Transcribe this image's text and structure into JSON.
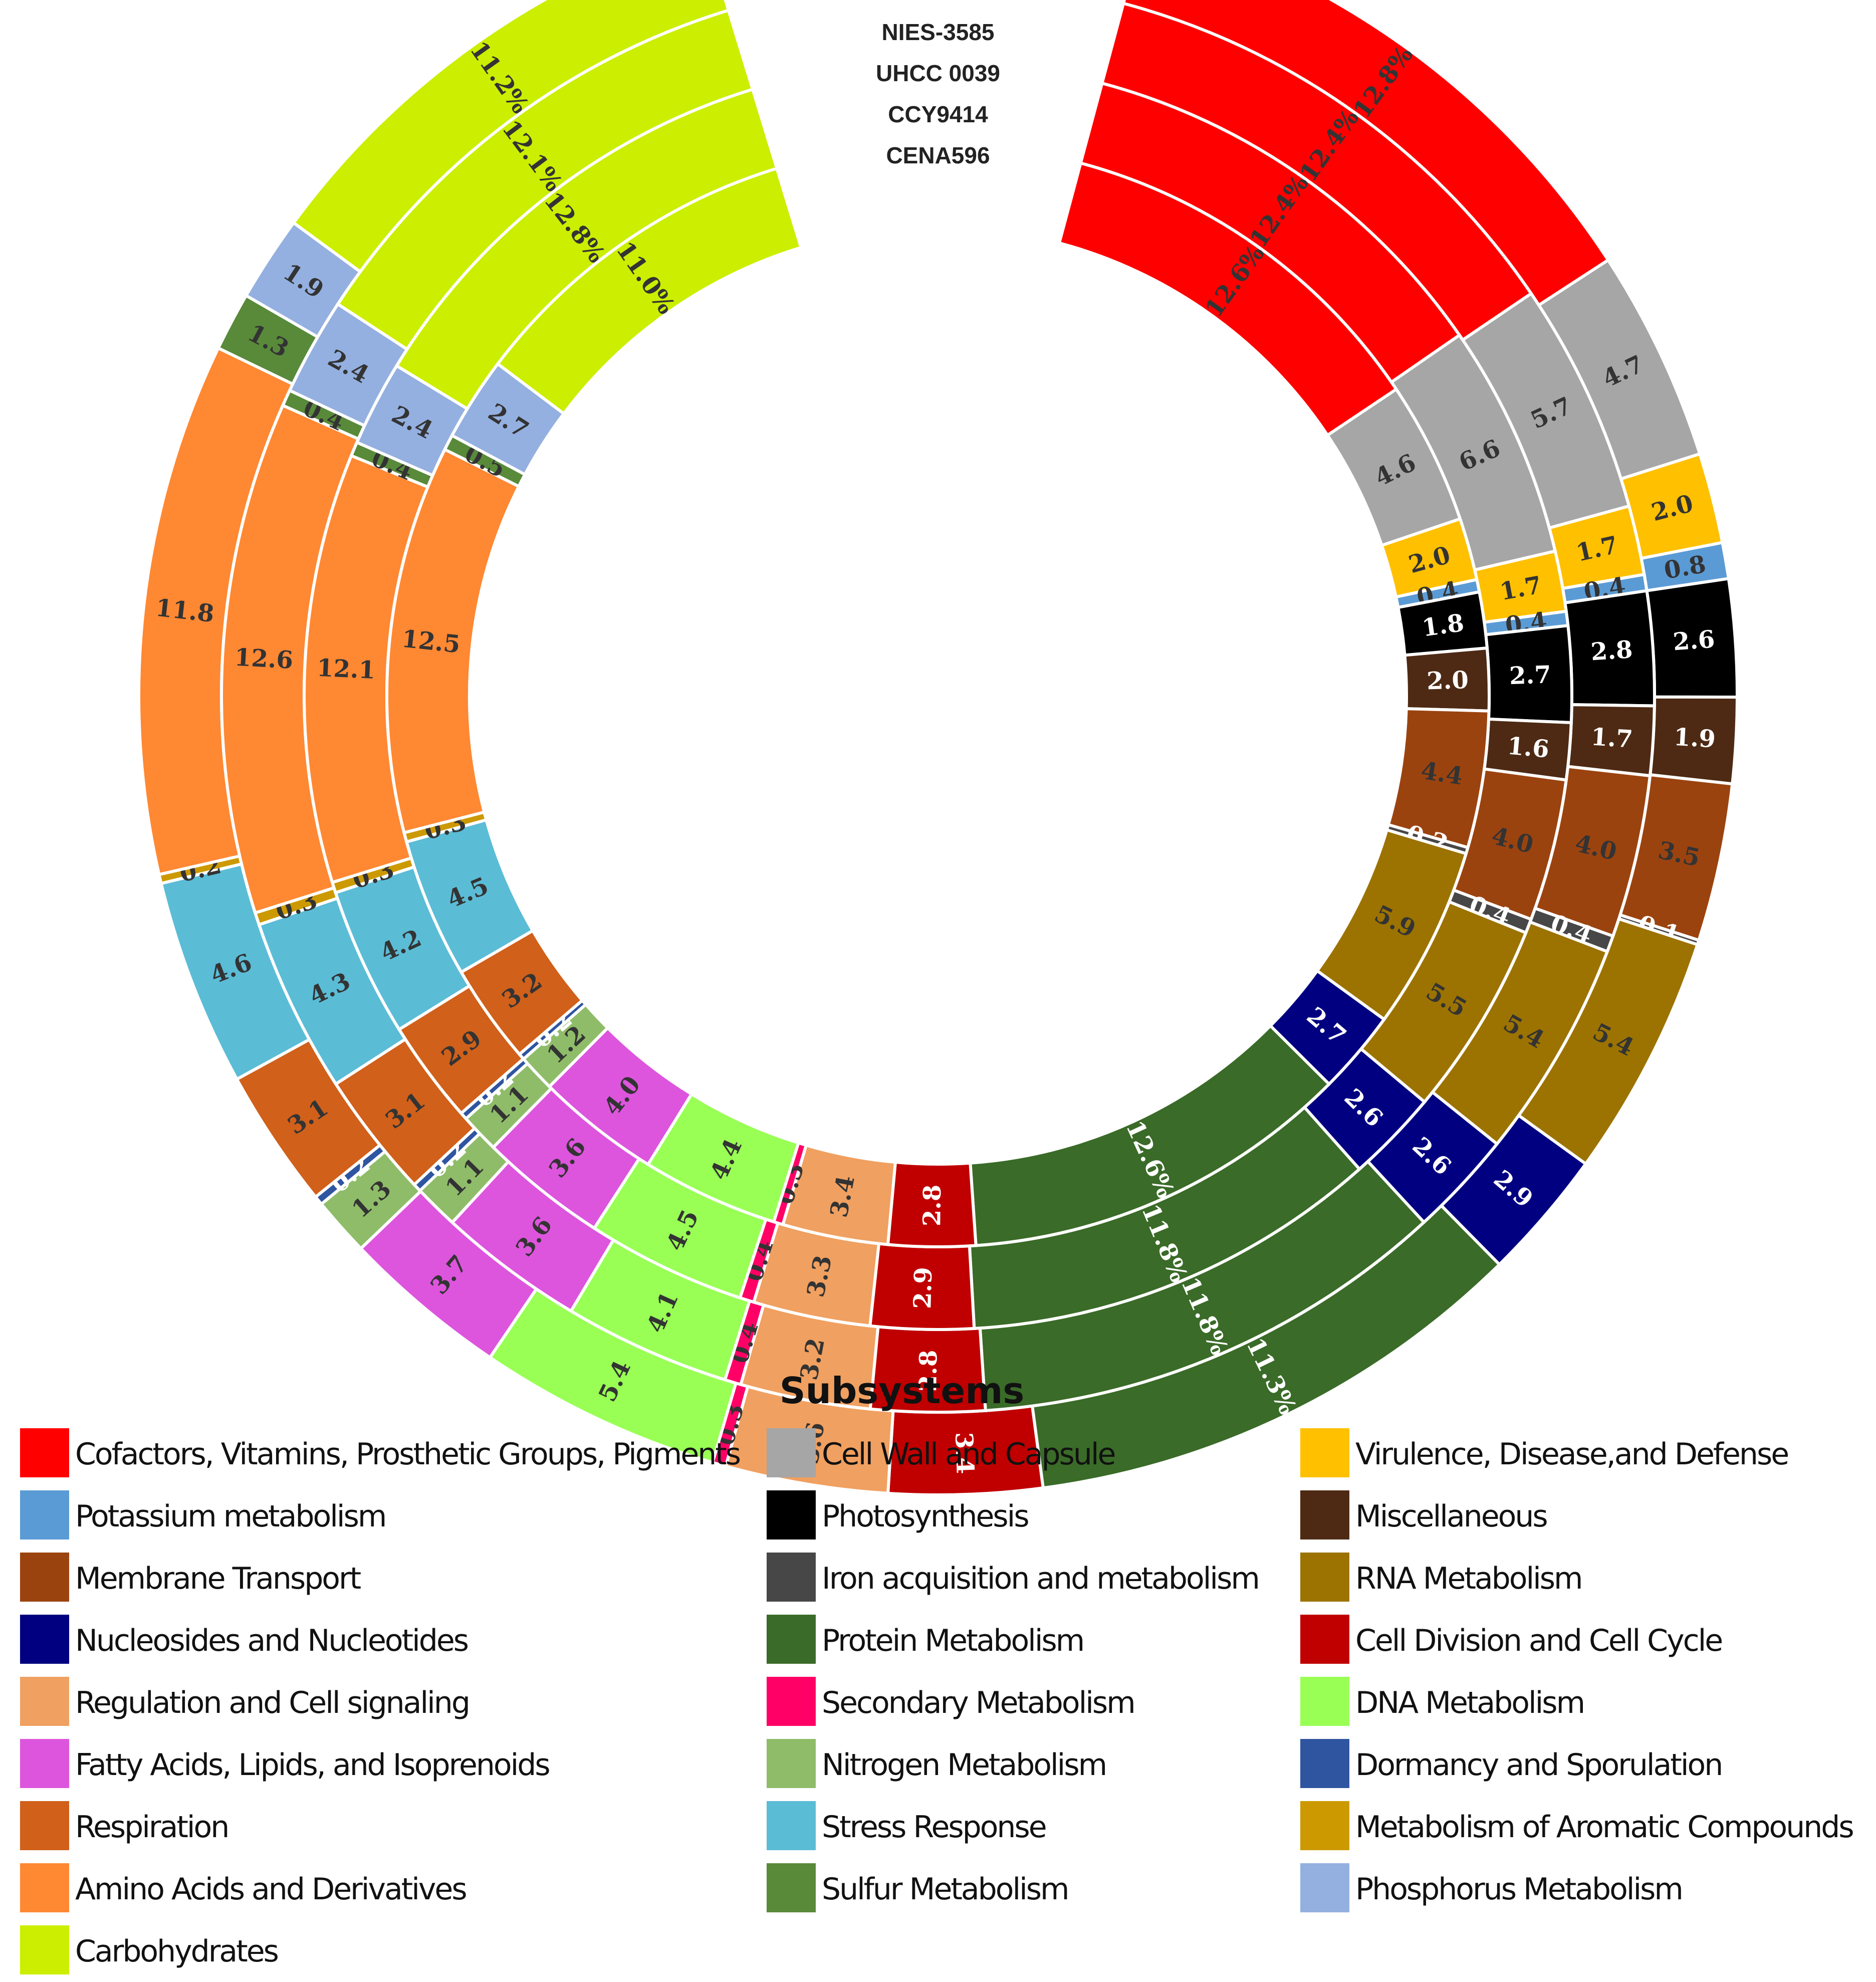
{
  "chart_data": {
    "type": "donut",
    "rings": [
      "NIES-3585",
      "UHCC 0039",
      "CCY9414",
      "CENA596"
    ],
    "legend_title": "Subsystems",
    "categories": [
      {
        "name": "Cofactors, Vitamins, Prosthetic Groups, Pigments",
        "color": "#ff0000",
        "values": [
          12.8,
          12.4,
          12.4,
          12.6
        ],
        "labels": [
          "12.8%",
          "12.4%",
          "12.4%",
          "12.6%"
        ]
      },
      {
        "name": "Cell Wall and Capsule",
        "color": "#a6a6a6",
        "values": [
          4.7,
          5.7,
          6.6,
          4.6
        ],
        "labels": [
          "4.7",
          "5.7",
          "6.6",
          "4.6"
        ]
      },
      {
        "name": "Virulence, Disease,and Defense",
        "color": "#ffc000",
        "values": [
          2.0,
          1.7,
          1.7,
          2.0
        ],
        "labels": [
          "2.0",
          "1.7",
          "1.7",
          "2.0"
        ]
      },
      {
        "name": "Potassium metabolism",
        "color": "#5b9bd5",
        "values": [
          0.8,
          0.4,
          0.4,
          0.4
        ],
        "labels": [
          "0.8",
          "0.4",
          "0.4",
          "0.4"
        ]
      },
      {
        "name": "Photosynthesis",
        "color": "#000000",
        "values": [
          2.6,
          2.8,
          2.7,
          1.8
        ],
        "labels": [
          "2.6",
          "2.8",
          "2.7",
          "1.8"
        ]
      },
      {
        "name": "Miscellaneous",
        "color": "#4e2a14",
        "values": [
          1.9,
          1.7,
          1.6,
          2.0
        ],
        "labels": [
          "1.9",
          "1.7",
          "1.6",
          "2.0"
        ]
      },
      {
        "name": "Membrane Transport",
        "color": "#9b430f",
        "values": [
          3.5,
          4.0,
          4.0,
          4.4
        ],
        "labels": [
          "3.5",
          "4.0",
          "4.0",
          "4.4"
        ]
      },
      {
        "name": "Iron acquisition and metabolism",
        "color": "#474747",
        "values": [
          0.1,
          0.4,
          0.4,
          0.2
        ],
        "labels": [
          "0.1",
          "0.4",
          "0.4",
          "0.2"
        ]
      },
      {
        "name": "RNA Metabolism",
        "color": "#9c7300",
        "values": [
          5.4,
          5.4,
          5.5,
          5.9
        ],
        "labels": [
          "5.4",
          "5.4",
          "5.5",
          "5.9"
        ]
      },
      {
        "name": "Nucleosides and Nucleotides",
        "color": "#000080",
        "values": [
          2.9,
          2.6,
          2.6,
          2.7
        ],
        "labels": [
          "2.9",
          "2.6",
          "2.6",
          "2.7"
        ]
      },
      {
        "name": "Protein Metabolism",
        "color": "#3a6b28",
        "values": [
          11.3,
          11.8,
          11.8,
          12.6
        ],
        "labels": [
          "11.3%",
          "11.8%",
          "11.8%",
          "12.6%"
        ]
      },
      {
        "name": "Cell Division and Cell Cycle",
        "color": "#c00000",
        "values": [
          3.4,
          2.8,
          2.9,
          2.8
        ],
        "labels": [
          "3.4",
          "2.8",
          "2.9",
          "2.8"
        ]
      },
      {
        "name": "Regulation and Cell signaling",
        "color": "#f0a060",
        "values": [
          3.6,
          3.2,
          3.3,
          3.4
        ],
        "labels": [
          "3.6",
          "3.2",
          "3.3",
          "3.4"
        ]
      },
      {
        "name": "Secondary Metabolism",
        "color": "#ff0066",
        "values": [
          0.3,
          0.4,
          0.4,
          0.3
        ],
        "labels": [
          "0.3",
          "0.4",
          "0.4",
          "0.3"
        ]
      },
      {
        "name": "DNA Metabolism",
        "color": "#99ff55",
        "values": [
          5.4,
          4.1,
          4.5,
          4.4
        ],
        "labels": [
          "5.4",
          "4.1",
          "4.5",
          "4.4"
        ]
      },
      {
        "name": "Fatty Acids, Lipids, and Isoprenoids",
        "color": "#dd55dd",
        "values": [
          3.7,
          3.6,
          3.6,
          4.0
        ],
        "labels": [
          "3.7",
          "3.6",
          "3.6",
          "4.0"
        ]
      },
      {
        "name": "Nitrogen Metabolism",
        "color": "#8fbc69",
        "values": [
          1.3,
          1.1,
          1.1,
          1.2
        ],
        "labels": [
          "1.3",
          "1.1",
          "1.1",
          "1.2"
        ]
      },
      {
        "name": "Dormancy and Sporulation",
        "color": "#2f55a0",
        "values": [
          0.2,
          0.2,
          0.2,
          0.2
        ],
        "labels": [
          "0.2",
          "0.2",
          "0.2",
          "0.2"
        ]
      },
      {
        "name": "Respiration",
        "color": "#d0601a",
        "values": [
          3.1,
          3.1,
          2.9,
          3.2
        ],
        "labels": [
          "3.1",
          "3.1",
          "2.9",
          "3.2"
        ]
      },
      {
        "name": "Stress Response",
        "color": "#5bbcd6",
        "values": [
          4.6,
          4.3,
          4.2,
          4.5
        ],
        "labels": [
          "4.6",
          "4.3",
          "4.2",
          "4.5"
        ]
      },
      {
        "name": "Metabolism of Aromatic Compounds",
        "color": "#cc9900",
        "values": [
          0.2,
          0.3,
          0.3,
          0.3
        ],
        "labels": [
          "0.2",
          "0.3",
          "0.3",
          "0.3"
        ]
      },
      {
        "name": "Amino Acids and Derivatives",
        "color": "#ff8833",
        "values": [
          11.8,
          12.6,
          12.1,
          12.5
        ],
        "labels": [
          "11.8",
          "12.6",
          "12.1",
          "12.5"
        ]
      },
      {
        "name": "Sulfur Metabolism",
        "color": "#588a3a",
        "values": [
          1.3,
          0.4,
          0.4,
          0.5
        ],
        "labels": [
          "1.3",
          "0.4",
          "0.4",
          "0.5"
        ]
      },
      {
        "name": "Phosphorus Metabolism",
        "color": "#94b0e0",
        "values": [
          1.9,
          2.4,
          2.4,
          2.7
        ],
        "labels": [
          "1.9",
          "2.4",
          "2.4",
          "2.7"
        ]
      },
      {
        "name": "Carbohydrates",
        "color": "#ccee00",
        "values": [
          11.2,
          12.1,
          12.8,
          11.0
        ],
        "labels": [
          "11.2%",
          "12.1%",
          "12.8%",
          "11.0%"
        ]
      }
    ],
    "legend_order": [
      "Cofactors, Vitamins, Prosthetic Groups, Pigments",
      "Cell Wall and Capsule",
      "Virulence, Disease,and Defense",
      "Potassium metabolism",
      "Photosynthesis",
      "Miscellaneous",
      "Membrane Transport",
      "Iron acquisition and metabolism",
      "RNA Metabolism",
      "Nucleosides and Nucleotides",
      "Protein Metabolism",
      "Cell Division and Cell Cycle",
      "Regulation and Cell signaling",
      "Secondary Metabolism",
      "DNA Metabolism",
      "Fatty Acids, Lipids, and Isoprenoids",
      "Nitrogen Metabolism",
      "Dormancy and Sporulation",
      "Respiration",
      "Stress Response",
      "Metabolism of Aromatic Compounds",
      "Amino Acids and Derivatives",
      "Sulfur Metabolism",
      "Phosphorus Metabolism",
      "Carbohydrates"
    ]
  }
}
